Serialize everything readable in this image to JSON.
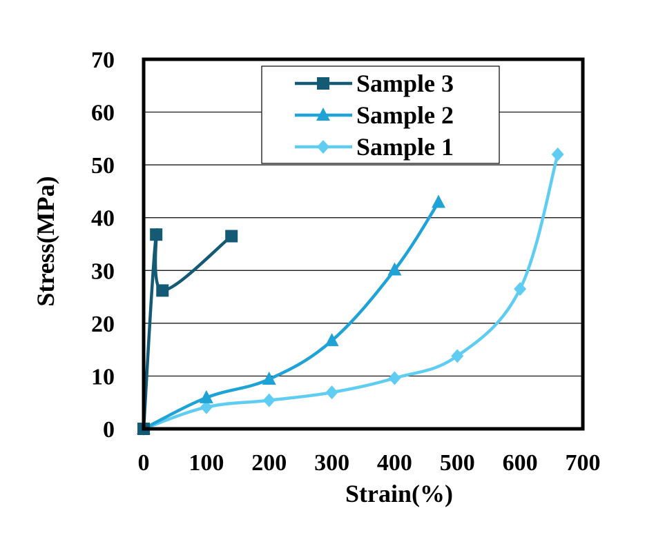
{
  "chart_data": {
    "type": "line",
    "title": "",
    "xlabel": "Strain(%)",
    "ylabel": "Stress(MPa)",
    "xlim": [
      0,
      700
    ],
    "ylim": [
      0,
      70
    ],
    "xticks": [
      0,
      100,
      200,
      300,
      400,
      500,
      600,
      700
    ],
    "yticks": [
      0,
      10,
      20,
      30,
      40,
      50,
      60,
      70
    ],
    "grid": "horizontal",
    "legend_position": "top-center",
    "series": [
      {
        "name": "Sample 3",
        "marker": "square",
        "color": "#145a74",
        "x": [
          0,
          20,
          30,
          140
        ],
        "y": [
          0,
          36.8,
          26.2,
          36.5
        ]
      },
      {
        "name": "Sample 2",
        "marker": "triangle",
        "color": "#1fa3d6",
        "x": [
          0,
          100,
          200,
          300,
          400,
          470
        ],
        "y": [
          0,
          5.9,
          9.4,
          16.7,
          30.1,
          42.9
        ]
      },
      {
        "name": "Sample 1",
        "marker": "diamond",
        "color": "#5fcdf2",
        "x": [
          0,
          100,
          200,
          300,
          400,
          500,
          600,
          660
        ],
        "y": [
          0,
          4.1,
          5.4,
          6.9,
          9.6,
          13.8,
          26.5,
          52
        ]
      }
    ]
  }
}
